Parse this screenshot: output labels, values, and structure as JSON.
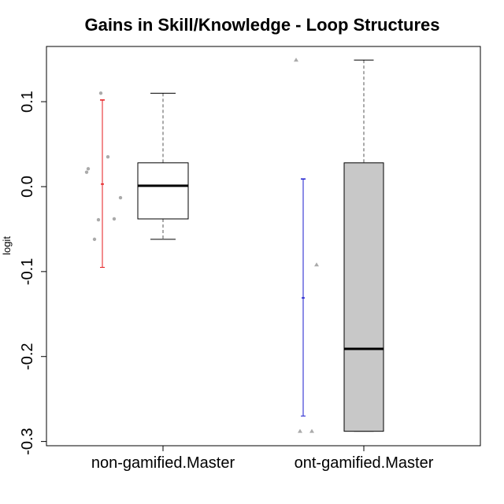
{
  "chart_data": {
    "type": "box",
    "title": "Gains in Skill/Knowledge - Loop Structures",
    "xlabel": "",
    "ylabel": "logit",
    "ylim": [
      -0.305,
      0.165
    ],
    "yticks": [
      {
        "value": 0.1,
        "label": "0.1"
      },
      {
        "value": 0.0,
        "label": "0.0"
      },
      {
        "value": -0.1,
        "label": "-0.1"
      },
      {
        "value": -0.2,
        "label": "-0.2"
      },
      {
        "value": -0.3,
        "label": "-0.3"
      }
    ],
    "categories": [
      "non-gamified.Master",
      "ont-gamified.Master"
    ],
    "boxes": [
      {
        "category": "non-gamified.Master",
        "fill": "#ffffff",
        "min": -0.062,
        "q1": -0.038,
        "median": 0.001,
        "q3": 0.028,
        "max": 0.11,
        "points": [
          0.11,
          0.035,
          0.021,
          0.017,
          -0.013,
          -0.039,
          -0.038,
          -0.062
        ],
        "point_marker": "circle",
        "mean_bar": {
          "color": "#e41a1c",
          "lower": -0.095,
          "mean": 0.003,
          "upper": 0.102
        }
      },
      {
        "category": "ont-gamified.Master",
        "fill": "#c8c8c8",
        "min": -0.288,
        "q1": -0.288,
        "median": -0.191,
        "q3": 0.028,
        "max": 0.149,
        "points": [
          0.149,
          -0.092,
          -0.288,
          -0.288
        ],
        "point_marker": "triangle",
        "mean_bar": {
          "color": "#1a1acd",
          "lower": -0.27,
          "mean": -0.131,
          "upper": 0.009
        }
      }
    ]
  }
}
